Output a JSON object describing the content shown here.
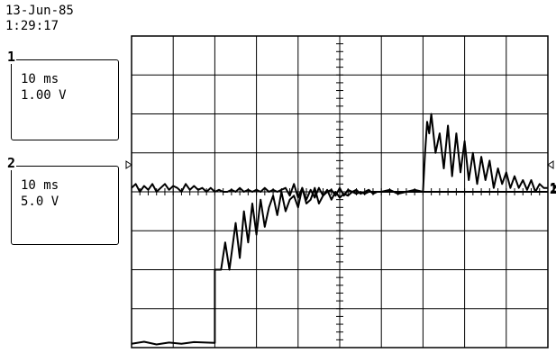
{
  "header": {
    "date": "13-Jun-85",
    "time": "1:29:17"
  },
  "channels": [
    {
      "number": "1",
      "timebase": "10 ms",
      "scale": "1.00 V"
    },
    {
      "number": "2",
      "timebase": "10 ms",
      "scale": "5.0 V"
    }
  ],
  "colors": {
    "trace": "#000000",
    "grid": "#000000",
    "background": "#ffffff"
  },
  "chart_data": {
    "type": "line",
    "grid": true,
    "x_divisions": 10,
    "y_divisions": 8,
    "x_units": "div",
    "y_units": "div",
    "xlim": [
      0,
      10
    ],
    "ylim": [
      -4,
      4
    ],
    "series": [
      {
        "name": "1",
        "x": [
          0,
          0.1,
          0.2,
          0.3,
          0.4,
          0.5,
          0.6,
          0.7,
          0.8,
          0.9,
          1.0,
          1.1,
          1.2,
          1.3,
          1.4,
          1.5,
          1.6,
          1.7,
          1.8,
          1.9,
          2.0,
          2.1,
          2.2,
          2.3,
          2.4,
          2.5,
          2.6,
          2.7,
          2.8,
          2.9,
          3.0,
          3.1,
          3.2,
          3.3,
          3.4,
          3.5,
          3.6,
          3.7,
          3.8,
          3.9,
          4.0,
          4.1,
          4.2,
          4.3,
          4.4,
          4.5,
          4.6,
          4.7,
          4.8,
          4.9,
          5.0,
          5.1,
          5.2,
          5.3,
          5.4,
          5.5,
          5.6,
          5.7,
          5.8,
          5.9,
          6.0,
          6.2,
          6.4,
          6.6,
          6.8,
          7.0,
          7.05,
          7.1,
          7.15,
          7.2,
          7.3,
          7.4,
          7.5,
          7.6,
          7.7,
          7.8,
          7.9,
          8.0,
          8.1,
          8.2,
          8.3,
          8.4,
          8.5,
          8.6,
          8.7,
          8.8,
          8.9,
          9.0,
          9.1,
          9.2,
          9.3,
          9.4,
          9.5,
          9.6,
          9.7,
          9.8,
          9.9,
          10.0
        ],
        "y": [
          0.1,
          0.2,
          0.0,
          0.15,
          0.05,
          0.2,
          0.0,
          0.1,
          0.2,
          0.05,
          0.15,
          0.1,
          0.0,
          0.2,
          0.05,
          0.15,
          0.05,
          0.1,
          0.0,
          0.1,
          0.0,
          0.05,
          0.0,
          0.0,
          0.05,
          0.0,
          0.1,
          0.0,
          0.05,
          0.0,
          0.05,
          0.0,
          0.1,
          0.0,
          0.05,
          0.0,
          0.05,
          0.1,
          -0.1,
          0.2,
          -0.15,
          0.1,
          -0.2,
          0.05,
          -0.15,
          0.1,
          -0.1,
          0.0,
          0.05,
          -0.1,
          0.1,
          -0.1,
          0.05,
          0.0,
          0.05,
          -0.05,
          0.0,
          0.05,
          -0.05,
          0.0,
          0.0,
          0.05,
          -0.05,
          0.0,
          0.05,
          0.0,
          1.0,
          1.8,
          1.5,
          2.0,
          1.0,
          1.5,
          0.6,
          1.7,
          0.4,
          1.5,
          0.5,
          1.3,
          0.3,
          1.0,
          0.2,
          0.9,
          0.3,
          0.8,
          0.1,
          0.6,
          0.2,
          0.5,
          0.1,
          0.4,
          0.1,
          0.3,
          0.05,
          0.3,
          0.0,
          0.2,
          0.1,
          0.1
        ]
      },
      {
        "name": "2",
        "x": [
          0,
          0.3,
          0.6,
          0.9,
          1.2,
          1.5,
          2.0,
          2.0,
          2.15,
          2.25,
          2.35,
          2.5,
          2.6,
          2.7,
          2.8,
          2.9,
          3.0,
          3.1,
          3.2,
          3.3,
          3.4,
          3.5,
          3.6,
          3.7,
          3.8,
          3.9,
          4.0,
          4.1,
          4.2,
          4.3,
          4.4,
          4.5,
          4.6,
          4.7,
          4.8,
          4.9,
          5.0,
          5.1,
          5.2,
          5.3,
          5.4,
          5.5,
          5.6,
          5.7,
          5.8,
          5.9,
          6.0,
          6.5,
          7.0,
          7.0,
          7.5,
          8.0,
          8.5,
          9.0,
          9.5,
          10.0
        ],
        "y": [
          -3.9,
          -3.85,
          -3.92,
          -3.87,
          -3.9,
          -3.86,
          -3.88,
          -2.0,
          -2.0,
          -1.3,
          -2.0,
          -0.8,
          -1.7,
          -0.5,
          -1.3,
          -0.3,
          -1.1,
          -0.2,
          -0.9,
          -0.4,
          -0.1,
          -0.6,
          0.0,
          -0.5,
          -0.2,
          -0.1,
          -0.4,
          0.1,
          -0.3,
          -0.2,
          0.1,
          -0.3,
          -0.1,
          0.05,
          -0.2,
          0.0,
          -0.15,
          -0.05,
          -0.1,
          0.0,
          -0.05,
          0.0,
          -0.05,
          0.0,
          0.0,
          0.0,
          0.0,
          0.0,
          0.0,
          0.0,
          0.0,
          0.0,
          0.0,
          0.0,
          0.0,
          0.0
        ]
      }
    ]
  }
}
